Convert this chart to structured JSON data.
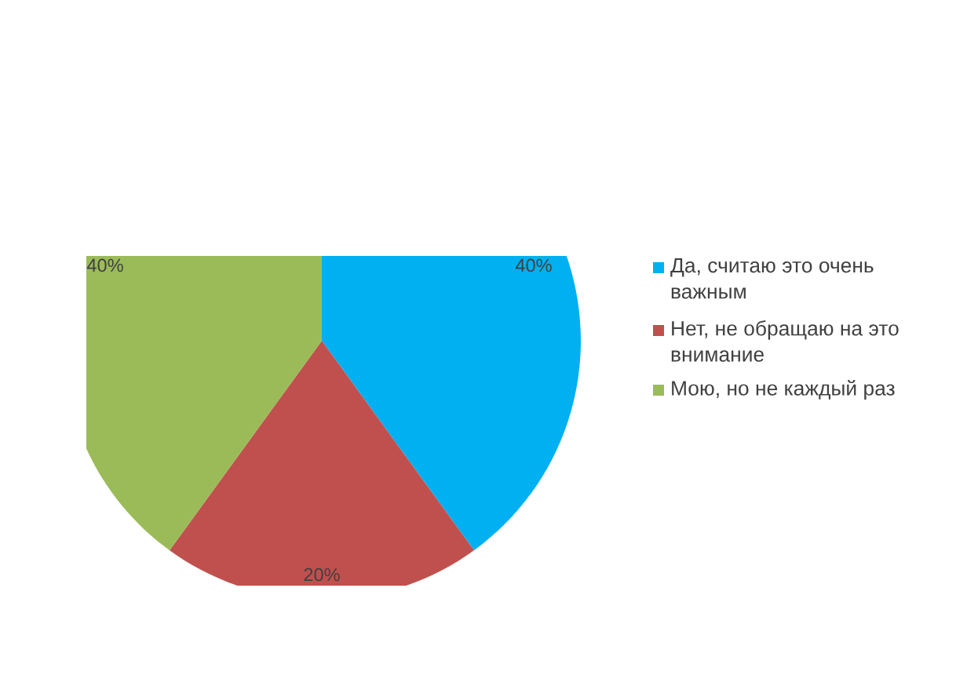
{
  "chart_data": {
    "type": "pie",
    "categories": [
      "Да, считаю это очень важным",
      "Нет, не обращаю на это внимание",
      "Мою, но не каждый раз"
    ],
    "values": [
      40,
      20,
      40
    ],
    "colors": [
      "#00b0f0",
      "#c0504d",
      "#9bbb59"
    ],
    "data_labels": true,
    "value_labels": [
      "40%",
      "20%",
      "40%"
    ],
    "legend": "right"
  }
}
